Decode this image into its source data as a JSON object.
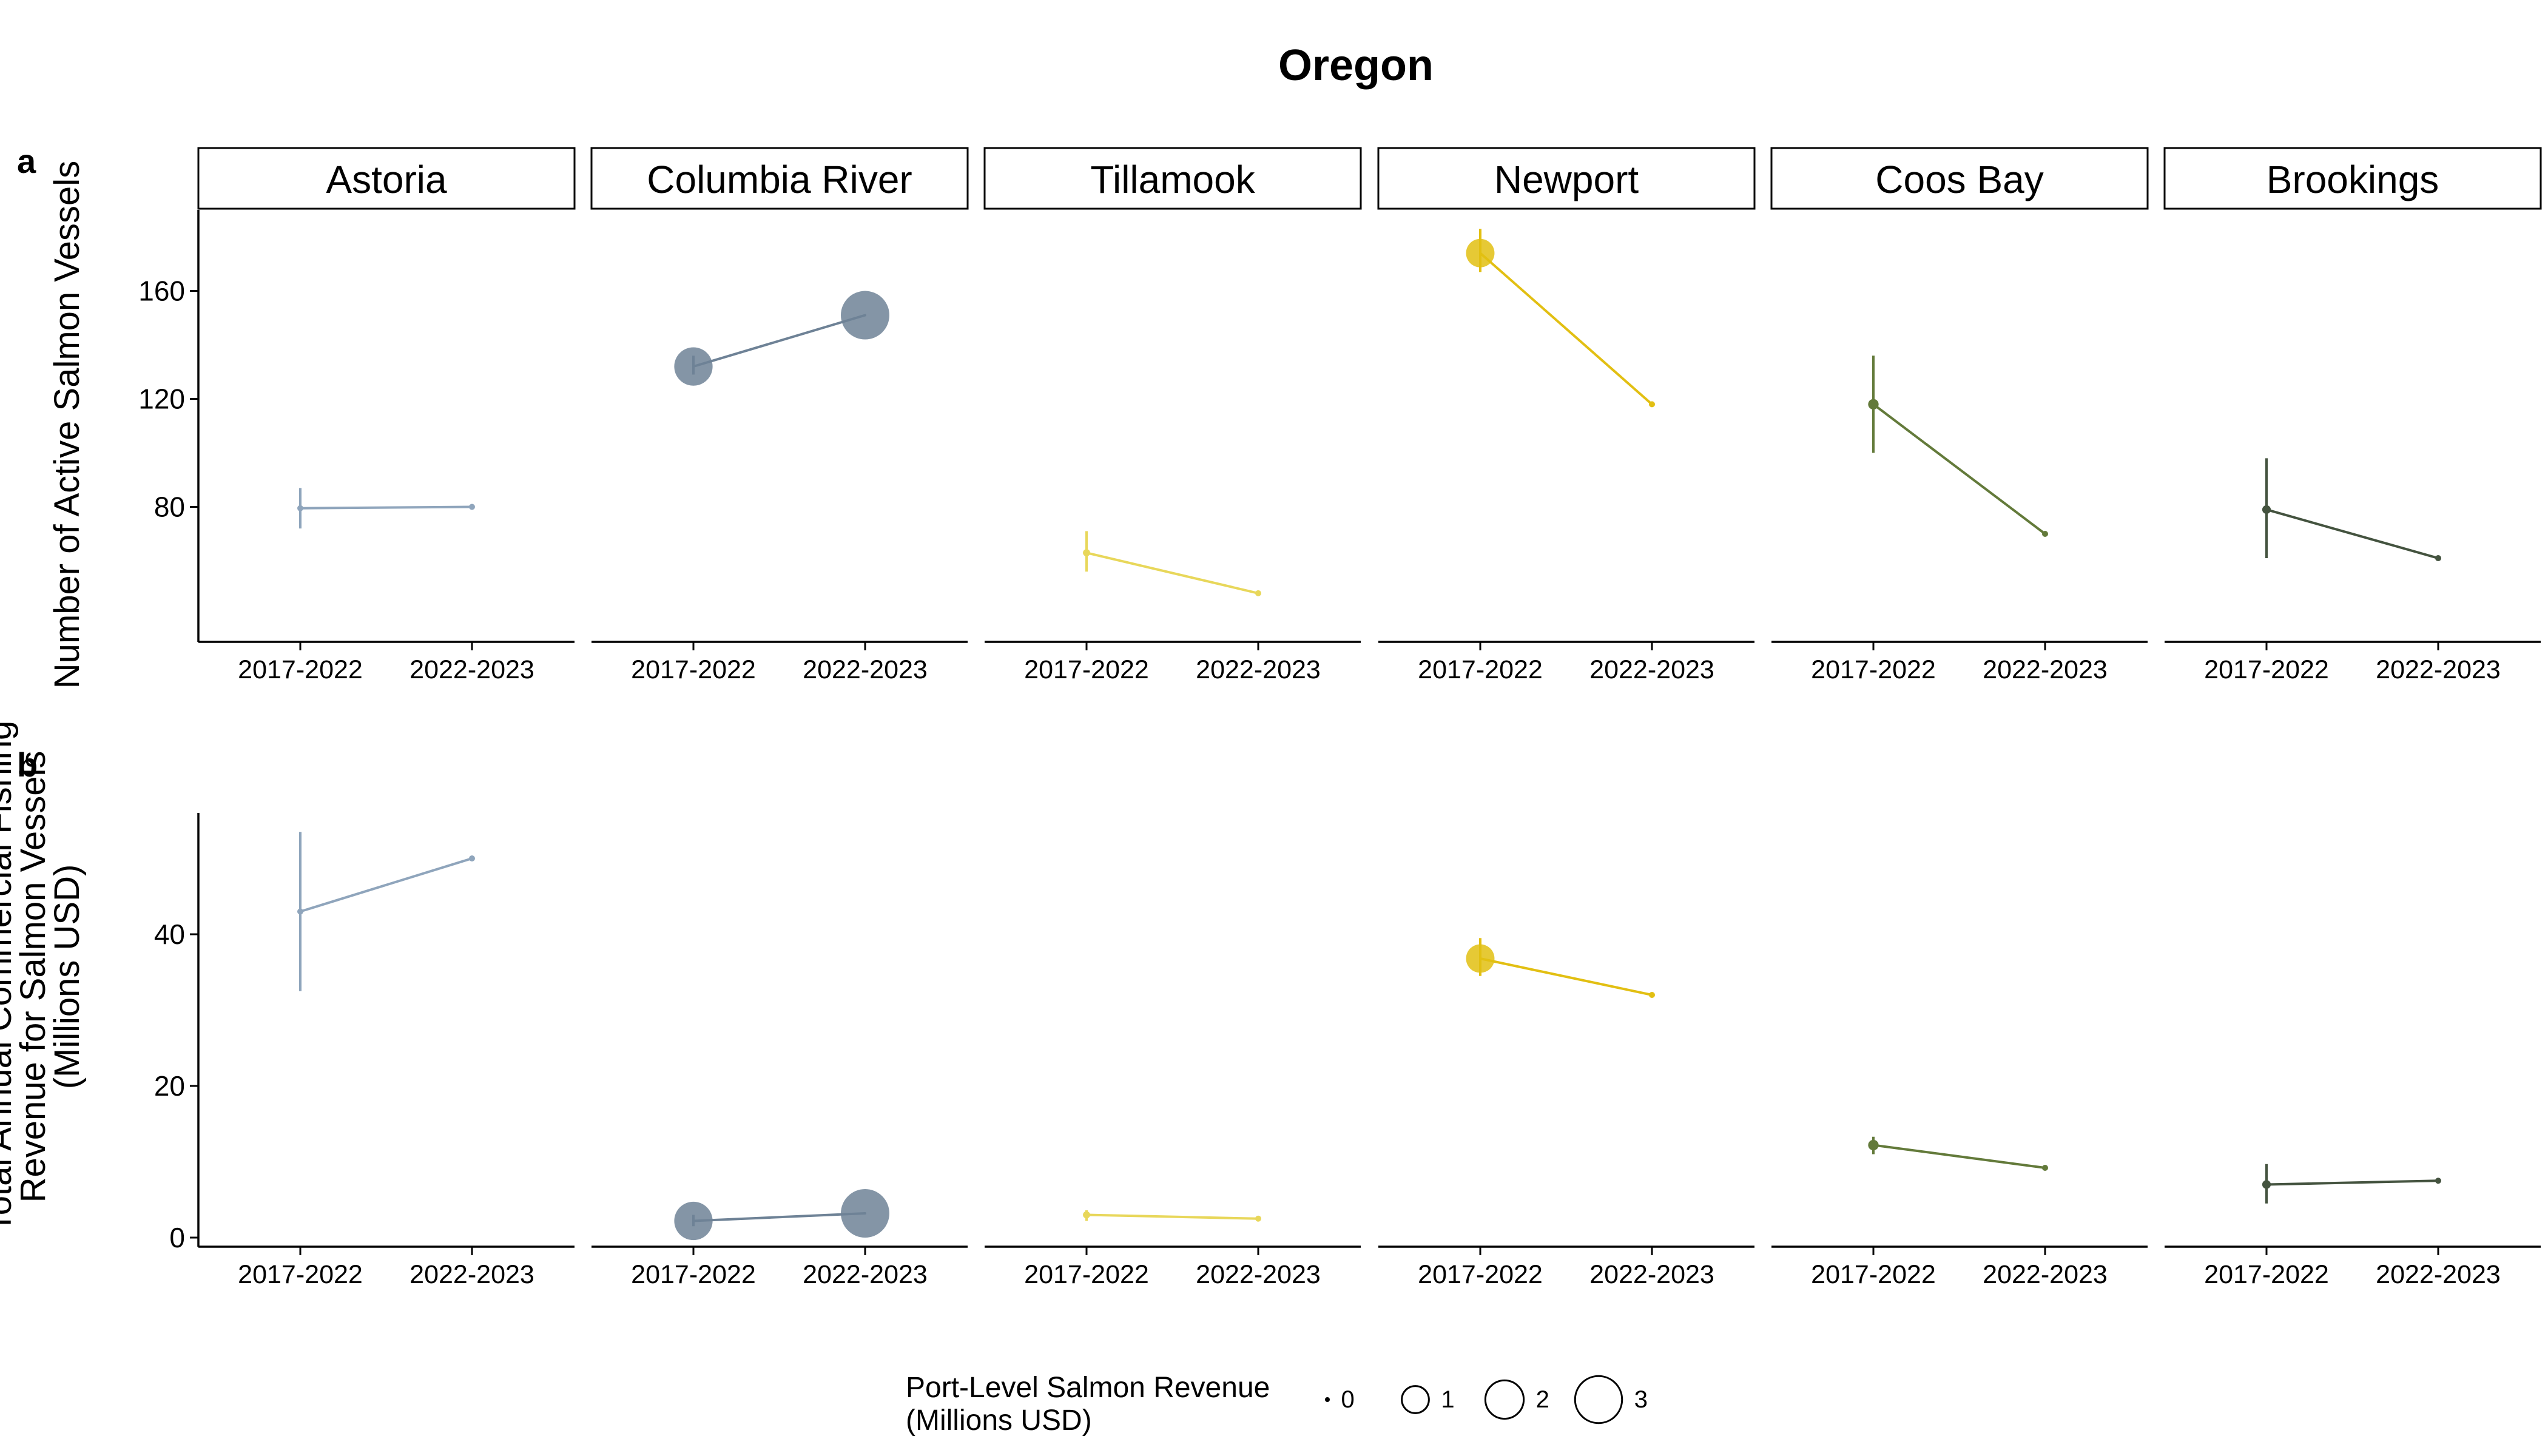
{
  "chart_data": {
    "type": "line",
    "title": "Oregon",
    "facets": [
      "Astoria",
      "Columbia River",
      "Tillamook",
      "Newport",
      "Coos Bay",
      "Brookings"
    ],
    "x_categories": [
      "2017-2022",
      "2022-2023"
    ],
    "colors": {
      "Astoria": "#8fa5bc",
      "Columbia River": "#6e8296",
      "Tillamook": "#e8d75a",
      "Newport": "#e2bf12",
      "Coos Bay": "#637a3a",
      "Brookings": "#44533f"
    },
    "panels": [
      {
        "tag": "a",
        "ylabel_lines": [
          "Number of Active Salmon Vessels"
        ],
        "ylim": [
          30,
          190
        ],
        "yticks": [
          80,
          120,
          160
        ],
        "series": [
          {
            "facet": "Astoria",
            "points": [
              {
                "x": "2017-2022",
                "y": 79.5,
                "low": 72,
                "high": 87,
                "size": 0.02
              },
              {
                "x": "2022-2023",
                "y": 80,
                "size": 0.05
              }
            ]
          },
          {
            "facet": "Columbia River",
            "points": [
              {
                "x": "2017-2022",
                "y": 132,
                "low": 129,
                "high": 136,
                "size": 2.0
              },
              {
                "x": "2022-2023",
                "y": 151,
                "size": 3.2
              }
            ]
          },
          {
            "facet": "Tillamook",
            "points": [
              {
                "x": "2017-2022",
                "y": 63,
                "low": 56,
                "high": 71,
                "size": 0.07
              },
              {
                "x": "2022-2023",
                "y": 48,
                "size": 0.02
              }
            ]
          },
          {
            "facet": "Newport",
            "points": [
              {
                "x": "2017-2022",
                "y": 174,
                "low": 167,
                "high": 183,
                "size": 1.1
              },
              {
                "x": "2022-2023",
                "y": 118,
                "size": 0.05
              }
            ]
          },
          {
            "facet": "Coos Bay",
            "points": [
              {
                "x": "2017-2022",
                "y": 118,
                "low": 100,
                "high": 136,
                "size": 0.15
              },
              {
                "x": "2022-2023",
                "y": 70,
                "size": 0.02
              }
            ]
          },
          {
            "facet": "Brookings",
            "points": [
              {
                "x": "2017-2022",
                "y": 79,
                "low": 61,
                "high": 98,
                "size": 0.1
              },
              {
                "x": "2022-2023",
                "y": 61,
                "size": 0.05
              }
            ]
          }
        ]
      },
      {
        "tag": "b",
        "ylabel_lines": [
          "Total Annual Commercial Fishing",
          "Revenue for Salmon Vessels",
          "(Millions USD)"
        ],
        "ylim": [
          -1.2,
          56
        ],
        "yticks": [
          0,
          20,
          40
        ],
        "series": [
          {
            "facet": "Astoria",
            "points": [
              {
                "x": "2017-2022",
                "y": 43,
                "low": 32.5,
                "high": 53.5,
                "size": 0.02
              },
              {
                "x": "2022-2023",
                "y": 50,
                "size": 0.05
              }
            ]
          },
          {
            "facet": "Columbia River",
            "points": [
              {
                "x": "2017-2022",
                "y": 2.2,
                "low": 1.5,
                "high": 3.0,
                "size": 2.0
              },
              {
                "x": "2022-2023",
                "y": 3.2,
                "size": 3.2
              }
            ]
          },
          {
            "facet": "Tillamook",
            "points": [
              {
                "x": "2017-2022",
                "y": 3.0,
                "low": 2.2,
                "high": 3.6,
                "size": 0.07
              },
              {
                "x": "2022-2023",
                "y": 2.5,
                "size": 0.02
              }
            ]
          },
          {
            "facet": "Newport",
            "points": [
              {
                "x": "2017-2022",
                "y": 36.8,
                "low": 34.5,
                "high": 39.5,
                "size": 1.1
              },
              {
                "x": "2022-2023",
                "y": 32,
                "size": 0.05
              }
            ]
          },
          {
            "facet": "Coos Bay",
            "points": [
              {
                "x": "2017-2022",
                "y": 12.2,
                "low": 11.0,
                "high": 13.3,
                "size": 0.15
              },
              {
                "x": "2022-2023",
                "y": 9.2,
                "size": 0.02
              }
            ]
          },
          {
            "facet": "Brookings",
            "points": [
              {
                "x": "2017-2022",
                "y": 7.0,
                "low": 4.5,
                "high": 9.7,
                "size": 0.1
              },
              {
                "x": "2022-2023",
                "y": 7.5,
                "size": 0.05
              }
            ]
          }
        ]
      }
    ],
    "size_legend": {
      "title_lines": [
        "Port-Level Salmon Revenue",
        "(Millions USD)"
      ],
      "breaks": [
        0,
        1,
        2,
        3
      ],
      "labels": [
        "0",
        "1",
        "2",
        "3"
      ]
    }
  }
}
